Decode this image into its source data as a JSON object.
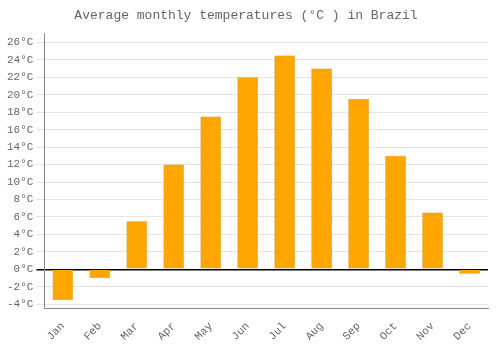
{
  "chart_data": {
    "type": "bar",
    "title": "Average monthly temperatures (°C ) in Brazil",
    "categories": [
      "Jan",
      "Feb",
      "Mar",
      "Apr",
      "May",
      "Jun",
      "Jul",
      "Aug",
      "Sep",
      "Oct",
      "Nov",
      "Dec"
    ],
    "values": [
      -3.5,
      -1.0,
      5.5,
      12.0,
      17.5,
      22.0,
      24.5,
      23.0,
      19.5,
      13.0,
      6.5,
      -0.5
    ],
    "color": "#FFA500",
    "ylim": [
      -4.5,
      27
    ],
    "yticks": [
      {
        "value": -4,
        "label": "-4°C"
      },
      {
        "value": -2,
        "label": "-2°C"
      },
      {
        "value": 0,
        "label": "0°C"
      },
      {
        "value": 2,
        "label": "2°C"
      },
      {
        "value": 4,
        "label": "4°C"
      },
      {
        "value": 6,
        "label": "6°C"
      },
      {
        "value": 8,
        "label": "8°C"
      },
      {
        "value": 10,
        "label": "10°C"
      },
      {
        "value": 12,
        "label": "12°C"
      },
      {
        "value": 14,
        "label": "14°C"
      },
      {
        "value": 16,
        "label": "16°C"
      },
      {
        "value": 18,
        "label": "18°C"
      },
      {
        "value": 20,
        "label": "20°C"
      },
      {
        "value": 22,
        "label": "22°C"
      },
      {
        "value": 24,
        "label": "24°C"
      },
      {
        "value": 26,
        "label": "26°C"
      }
    ],
    "grid": true
  }
}
